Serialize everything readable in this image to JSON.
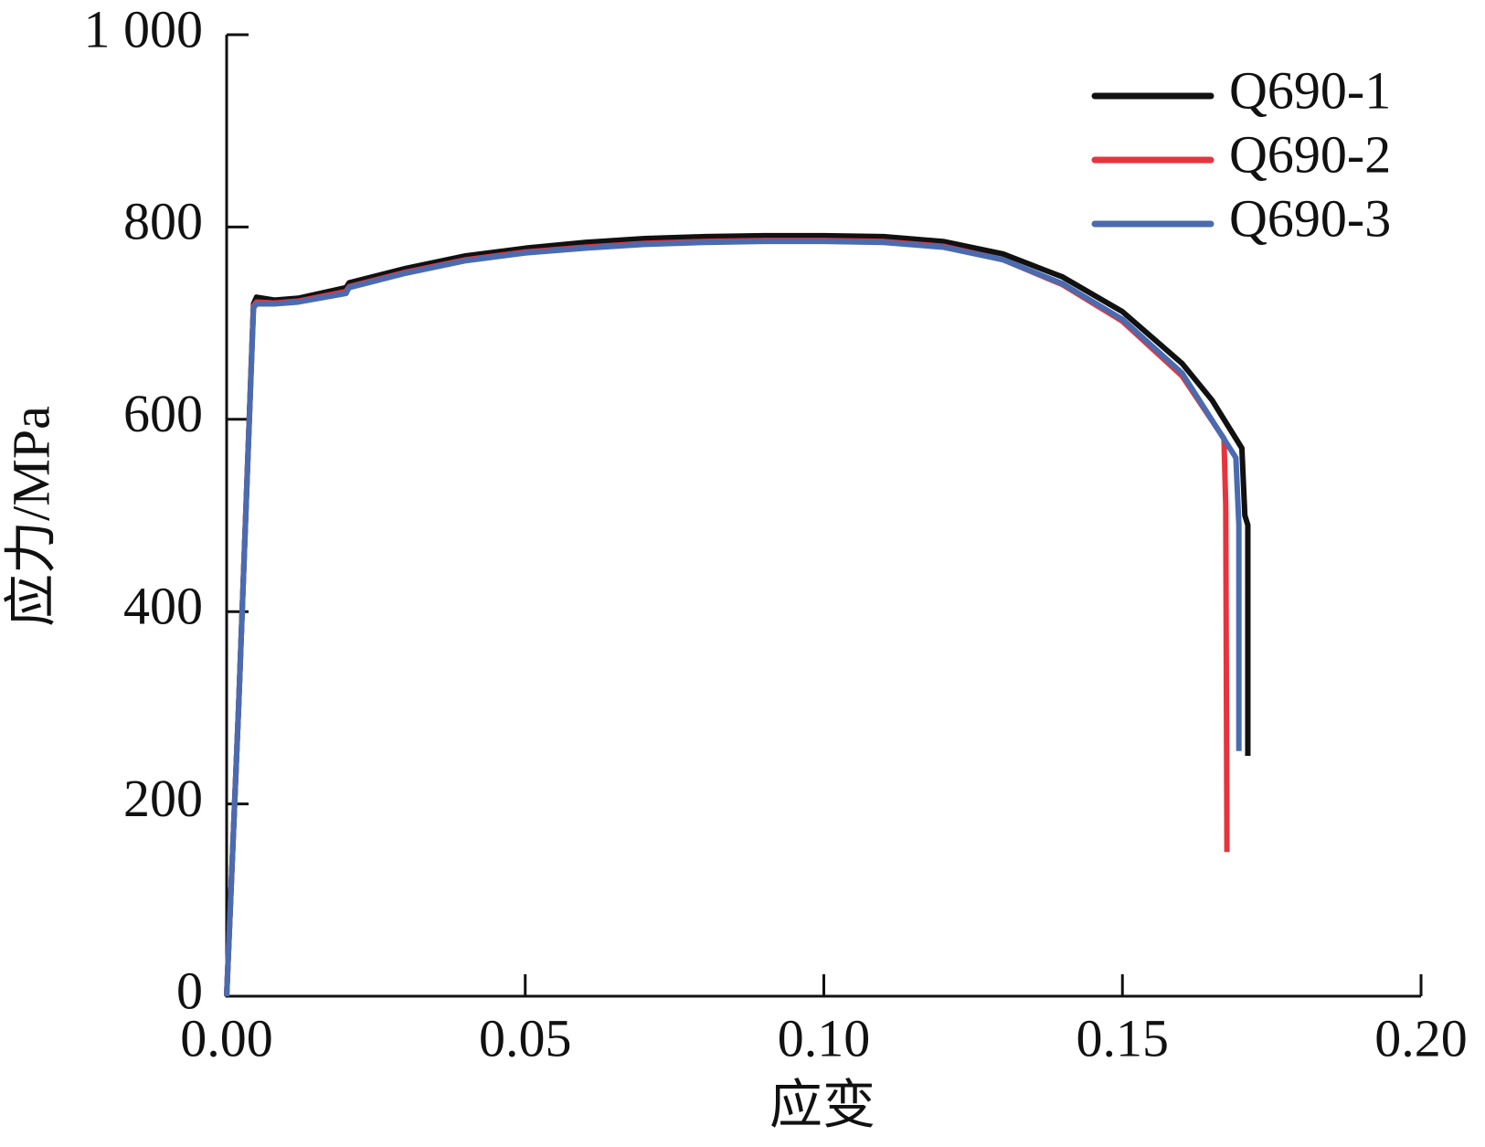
{
  "chart_data": {
    "type": "line",
    "x_label": "应变",
    "y_label": "应力/MPa",
    "xlim": [
      0,
      0.2
    ],
    "ylim": [
      0,
      1000
    ],
    "xticks": [
      {
        "value": 0,
        "label": "0.00"
      },
      {
        "value": 0.05,
        "label": "0.05"
      },
      {
        "value": 0.1,
        "label": "0.10"
      },
      {
        "value": 0.15,
        "label": "0.15"
      },
      {
        "value": 0.2,
        "label": "0.20"
      }
    ],
    "yticks": [
      0,
      200,
      400,
      600,
      800,
      {
        "value": 1000,
        "label": "1 000"
      }
    ],
    "legend": "upper right",
    "series": [
      {
        "name": "Q690-1",
        "color": "#111111",
        "x": [
          0,
          0.002,
          0.0045,
          0.005,
          0.008,
          0.012,
          0.02,
          0.0205,
          0.03,
          0.04,
          0.05,
          0.06,
          0.07,
          0.08,
          0.09,
          0.1,
          0.11,
          0.12,
          0.13,
          0.14,
          0.15,
          0.16,
          0.165,
          0.17,
          0.1705,
          0.171,
          0.171
        ],
        "values": [
          0,
          300,
          720,
          727,
          724,
          726,
          737,
          742,
          757,
          770,
          778,
          784,
          788,
          790,
          791,
          791,
          790,
          785,
          772,
          748,
          712,
          658,
          620,
          570,
          500,
          490,
          250
        ]
      },
      {
        "name": "Q690-2",
        "color": "#e8333c",
        "x": [
          0,
          0.002,
          0.0045,
          0.005,
          0.008,
          0.012,
          0.02,
          0.0205,
          0.03,
          0.04,
          0.05,
          0.06,
          0.07,
          0.08,
          0.09,
          0.1,
          0.11,
          0.12,
          0.13,
          0.14,
          0.15,
          0.16,
          0.167,
          0.1673,
          0.1675
        ],
        "values": [
          0,
          300,
          718,
          722,
          721,
          723,
          733,
          738,
          753,
          766,
          774,
          779,
          783,
          785,
          786,
          786,
          785,
          780,
          766,
          740,
          702,
          645,
          580,
          510,
          150
        ]
      },
      {
        "name": "Q690-3",
        "color": "#4a6bb0",
        "x": [
          0,
          0.002,
          0.0045,
          0.005,
          0.008,
          0.012,
          0.02,
          0.0205,
          0.03,
          0.04,
          0.05,
          0.06,
          0.07,
          0.08,
          0.09,
          0.1,
          0.11,
          0.12,
          0.13,
          0.14,
          0.15,
          0.16,
          0.169,
          0.1695,
          0.1695
        ],
        "values": [
          0,
          300,
          716,
          720,
          720,
          722,
          731,
          737,
          752,
          765,
          773,
          778,
          782,
          784,
          785,
          785,
          784,
          779,
          766,
          741,
          704,
          648,
          560,
          490,
          255
        ]
      }
    ]
  }
}
